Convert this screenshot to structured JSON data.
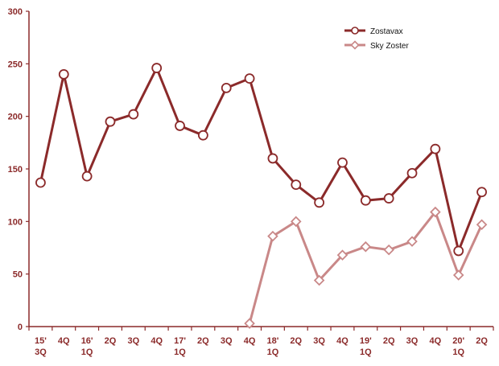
{
  "colors": {
    "axis": "#8b2a2a",
    "zostavax": "#8b2a2a",
    "sky_zoster": "#c98888",
    "marker_fill": "#ffffff"
  },
  "chart_data": {
    "type": "line",
    "title": "",
    "xlabel": "",
    "ylabel": "",
    "ylim": [
      0,
      300
    ],
    "yticks": [
      0,
      50,
      100,
      150,
      200,
      250,
      300
    ],
    "grid": false,
    "legend_position": "top-right",
    "categories": [
      [
        "15'",
        "3Q"
      ],
      [
        "4Q"
      ],
      [
        "16'",
        "1Q"
      ],
      [
        "2Q"
      ],
      [
        "3Q"
      ],
      [
        "4Q"
      ],
      [
        "17'",
        "1Q"
      ],
      [
        "2Q"
      ],
      [
        "3Q"
      ],
      [
        "4Q"
      ],
      [
        "18'",
        "1Q"
      ],
      [
        "2Q"
      ],
      [
        "3Q"
      ],
      [
        "4Q"
      ],
      [
        "19'",
        "1Q"
      ],
      [
        "2Q"
      ],
      [
        "3Q"
      ],
      [
        "4Q"
      ],
      [
        "20'",
        "1Q"
      ],
      [
        "2Q"
      ]
    ],
    "series": [
      {
        "name": "Zostavax",
        "marker": "circle",
        "color": "#8b2a2a",
        "values": [
          137,
          240,
          143,
          195,
          202,
          246,
          191,
          182,
          227,
          236,
          160,
          135,
          118,
          156,
          120,
          122,
          146,
          169,
          72,
          128
        ]
      },
      {
        "name": "Sky Zoster",
        "marker": "diamond",
        "color": "#c98888",
        "values": [
          null,
          null,
          null,
          null,
          null,
          null,
          null,
          null,
          null,
          3,
          86,
          100,
          44,
          68,
          76,
          73,
          81,
          109,
          49,
          97
        ]
      }
    ]
  }
}
